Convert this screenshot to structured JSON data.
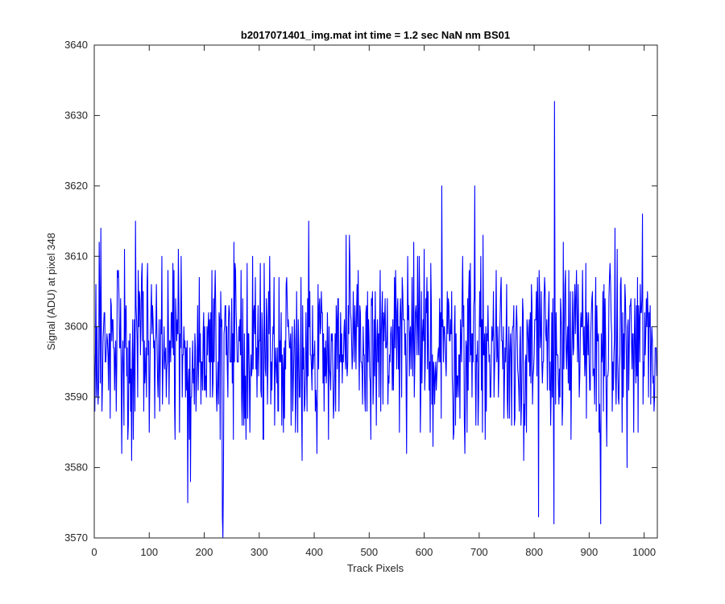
{
  "chart_data": {
    "type": "line",
    "title": "b2017071401_img.mat int time = 1.2 sec  NaN nm BS01",
    "xlabel": "Track Pixels",
    "ylabel": "Signal (ADU) at pixel 348",
    "xlim": [
      0,
      1024
    ],
    "ylim": [
      3570,
      3640
    ],
    "xticks": [
      0,
      100,
      200,
      300,
      400,
      500,
      600,
      700,
      800,
      900,
      1000
    ],
    "yticks": [
      3570,
      3580,
      3590,
      3600,
      3610,
      3620,
      3630,
      3640
    ],
    "grid": false,
    "legend": "none",
    "series": [
      {
        "color": "#0000ff",
        "n_points": 1024,
        "noise_mean": 3597,
        "noise_amplitude": 8,
        "x": [
          0,
          50,
          75,
          170,
          175,
          233,
          234,
          235,
          390,
          632,
          692,
          808,
          836,
          837,
          921,
          997
        ],
        "y": [
          3596,
          3582,
          3615,
          3575,
          3578,
          3573,
          3570,
          3580,
          3615,
          3620,
          3620,
          3573,
          3572,
          3632,
          3572,
          3616
        ]
      }
    ]
  }
}
